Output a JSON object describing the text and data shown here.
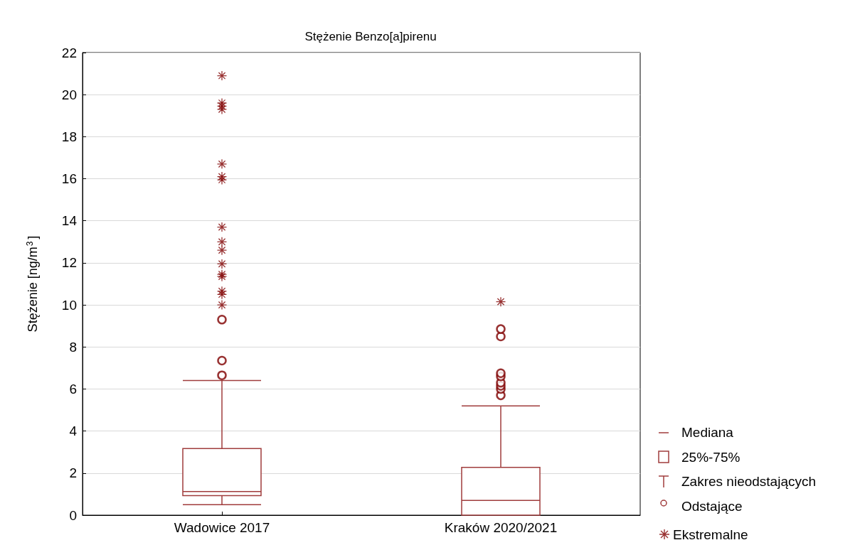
{
  "chart_data": {
    "type": "box",
    "title": "Stężenie Benzo[a]pirenu",
    "ylabel": "Stężenie [ng/m$^{3}$]",
    "categories": [
      "Wadowice 2017",
      "Kraków 2020/2021"
    ],
    "color": "#a03c3c",
    "boxes": [
      {
        "low": 0.5,
        "q1": 0.93,
        "median": 1.12,
        "q3": 3.17,
        "high": 6.4,
        "outliers": [
          6.65,
          7.35,
          9.3
        ]
      },
      {
        "low": 0,
        "q1": 0,
        "median": 0.7,
        "q3": 2.27,
        "high": 5.2,
        "outliers": [
          5.7,
          6.0,
          6.15,
          6.3,
          6.6,
          6.75,
          8.5,
          8.85
        ]
      }
    ],
    "series": [
      {
        "type": "scatter",
        "name": "Ekstremalne",
        "color": "#800000",
        "marker": "star",
        "x": [
          "Wadowice 2017",
          "Wadowice 2017",
          "Wadowice 2017",
          "Wadowice 2017",
          "Wadowice 2017",
          "Wadowice 2017",
          "Wadowice 2017",
          "Wadowice 2017",
          "Wadowice 2017",
          "Wadowice 2017",
          "Wadowice 2017",
          "Wadowice 2017",
          "Wadowice 2017",
          "Wadowice 2017",
          "Wadowice 2017",
          "Wadowice 2017",
          "Kraków 2020/2021"
        ],
        "values": [
          10.0,
          10.5,
          10.65,
          11.35,
          11.45,
          11.95,
          12.6,
          13.0,
          13.7,
          15.95,
          16.1,
          16.7,
          19.3,
          19.45,
          19.6,
          20.9,
          10.15
        ]
      }
    ],
    "annotations": [
      "Mediana",
      "25%-75%",
      "Zakres nieodstających",
      "Odstające"
    ],
    "ylim": [
      0,
      22
    ],
    "yticks": [
      0,
      2,
      4,
      6,
      8,
      10,
      12,
      14,
      16,
      18,
      20,
      22
    ],
    "grid": "y",
    "legend": "bottom right"
  }
}
